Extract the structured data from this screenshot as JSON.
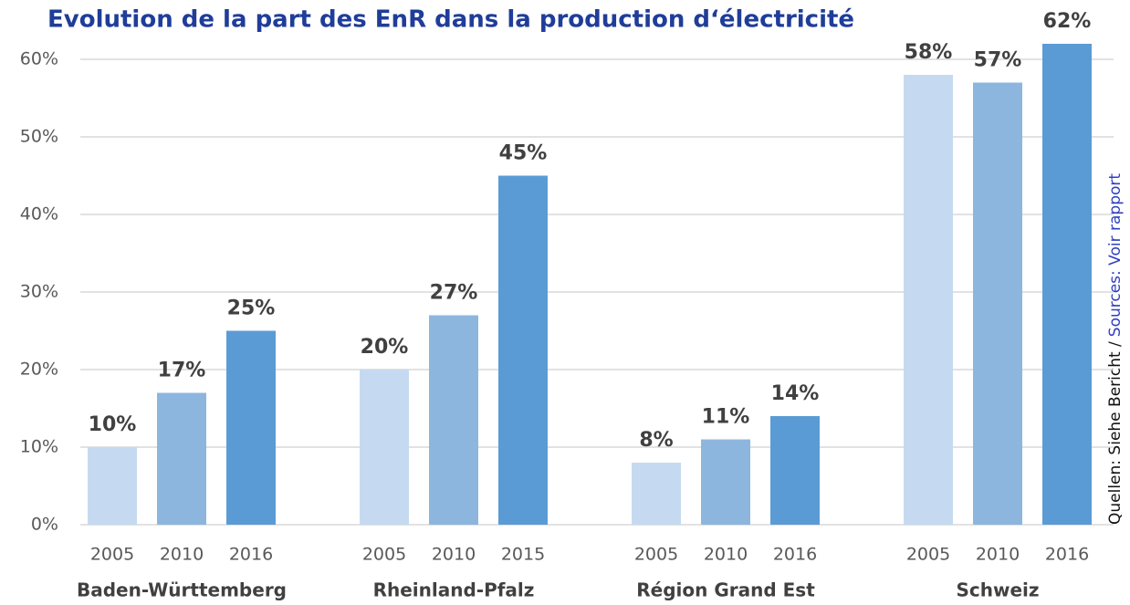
{
  "chart_data": {
    "type": "grouped_bar",
    "title": "Evolution de la part des EnR dans la production d‘électricité",
    "source_de": "Quellen: Siehe Bericht /",
    "source_fr": "Sources: Voir rapport",
    "colors": [
      "#c5daf0",
      "#8db6df",
      "#5b9bd5"
    ],
    "ylim": [
      0,
      60
    ],
    "yticks": [
      {
        "value": 0,
        "label": "0%"
      },
      {
        "value": 10,
        "label": "10%"
      },
      {
        "value": 20,
        "label": "20%"
      },
      {
        "value": 30,
        "label": "30%"
      },
      {
        "value": 40,
        "label": "40%"
      },
      {
        "value": 50,
        "label": "50%"
      },
      {
        "value": 60,
        "label": "60%"
      }
    ],
    "grid": true,
    "groups": [
      {
        "name": "Baden-Württemberg",
        "categories": [
          "2005",
          "2010",
          "2016"
        ],
        "values": [
          10,
          17,
          25
        ],
        "value_labels": [
          "10%",
          "17%",
          "25%"
        ]
      },
      {
        "name": "Rheinland-Pfalz",
        "categories": [
          "2005",
          "2010",
          "2015"
        ],
        "values": [
          20,
          27,
          45
        ],
        "value_labels": [
          "20%",
          "27%",
          "45%"
        ]
      },
      {
        "name": "Région Grand Est",
        "categories": [
          "2005",
          "2010",
          "2016"
        ],
        "values": [
          8,
          11,
          14
        ],
        "value_labels": [
          "8%",
          "11%",
          "14%"
        ]
      },
      {
        "name": "Schweiz",
        "categories": [
          "2005",
          "2010",
          "2016"
        ],
        "values": [
          58,
          57,
          62
        ],
        "value_labels": [
          "58%",
          "57%",
          "62%"
        ]
      }
    ]
  }
}
